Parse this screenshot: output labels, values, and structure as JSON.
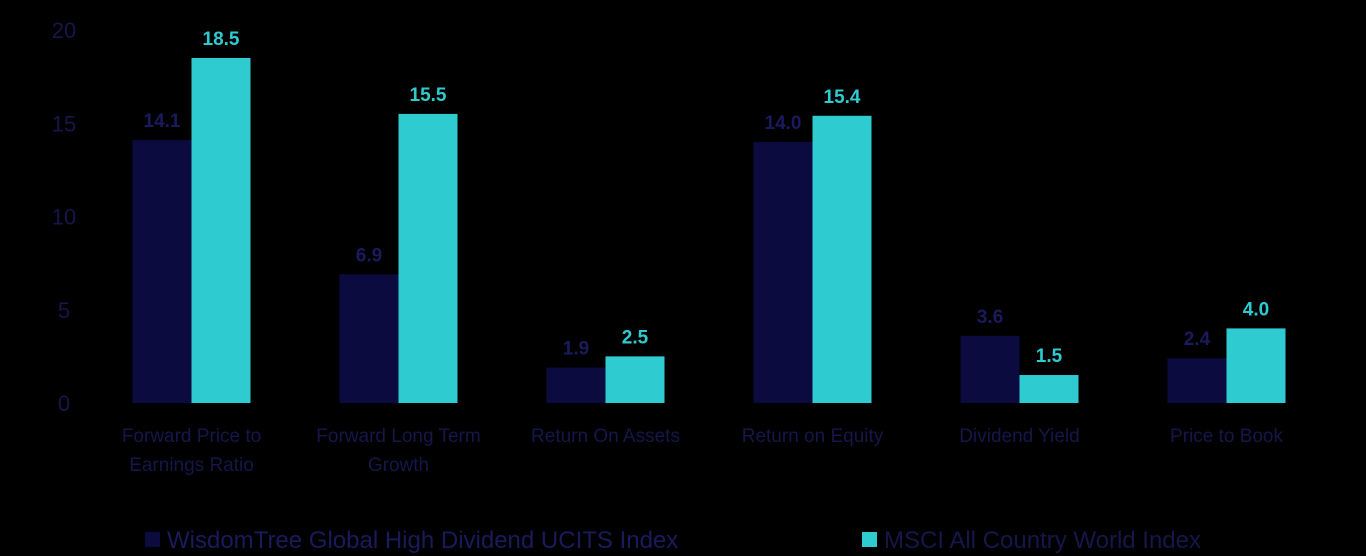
{
  "chart_data": {
    "type": "bar",
    "title": "",
    "xlabel": "",
    "ylabel": "",
    "ylim": [
      0,
      20
    ],
    "yticks": [
      0,
      5,
      10,
      15,
      20
    ],
    "grid": false,
    "legend_position": "bottom",
    "categories": [
      [
        "Forward Price to",
        "Earnings Ratio"
      ],
      [
        "Forward Long Term",
        "Growth"
      ],
      [
        "Return On Assets"
      ],
      [
        "Return on Equity"
      ],
      [
        "Dividend Yield"
      ],
      [
        "Price to Book"
      ]
    ],
    "series": [
      {
        "name": "WisdomTree Global High Dividend UCITS Index",
        "color": "#0b0b3f",
        "label_color": "#1a1a5c",
        "values": [
          14.1,
          6.9,
          1.9,
          14.0,
          3.6,
          2.4
        ],
        "labels": [
          "14.1",
          "6.9",
          "1.9",
          "14.0",
          "3.6",
          "2.4"
        ]
      },
      {
        "name": "MSCI All Country World Index",
        "color": "#2ecbd1",
        "label_color": "#2ecbd1",
        "values": [
          18.5,
          15.5,
          2.5,
          15.4,
          1.5,
          4.0
        ],
        "labels": [
          "18.5",
          "15.5",
          "2.5",
          "15.4",
          "1.5",
          "4.0"
        ]
      }
    ],
    "axis_color": "#16164a"
  }
}
